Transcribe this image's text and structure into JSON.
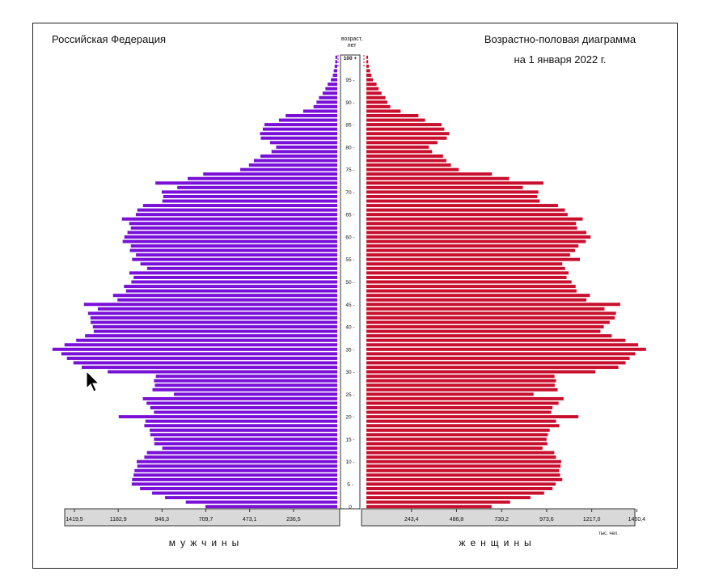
{
  "chart_data": {
    "type": "bar",
    "subtype": "population-pyramid",
    "title_left": "Российская Федерация",
    "title_right": [
      "Возрастно-половая диаграмма",
      "на 1 января 2022 г."
    ],
    "y_axis_label": [
      "возраст,",
      "лет"
    ],
    "y_ticks": [
      "0",
      "5",
      "10",
      "15",
      "20",
      "25",
      "30",
      "35",
      "40",
      "45",
      "50",
      "55",
      "60",
      "65",
      "70",
      "75",
      "80",
      "85",
      "90",
      "95",
      "100 +"
    ],
    "x_tick_labels_male": [
      "1419,5",
      "1182,9",
      "946,3",
      "709,7",
      "473,1",
      "236,5"
    ],
    "x_tick_labels_female": [
      "243,4",
      "486,8",
      "730,2",
      "973,6",
      "1217,0",
      "1460,4"
    ],
    "units": "тыс. чел.",
    "male_label": "мужчины",
    "female_label": "женщины",
    "xlim": [
      0,
      1520
    ],
    "series": [
      {
        "name": "мужчины",
        "color": "#7a10d8",
        "values": [
          712,
          818,
          930,
          1000,
          1065,
          1110,
          1108,
          1100,
          1095,
          1080,
          1083,
          1042,
          1028,
          945,
          988,
          990,
          1010,
          1013,
          1042,
          1036,
          1180,
          990,
          1010,
          1030,
          1050,
          882,
          998,
          985,
          990,
          980,
          1240,
          1380,
          1425,
          1460,
          1490,
          1538,
          1473,
          1410,
          1362,
          1315,
          1320,
          1332,
          1333,
          1346,
          1293,
          1368,
          1187,
          1211,
          1141,
          1152,
          1112,
          1100,
          1123,
          1027,
          1063,
          1108,
          1087,
          1120,
          1115,
          1159,
          1150,
          1133,
          1115,
          1124,
          1163,
          1088,
          1080,
          1049,
          945,
          940,
          948,
          864,
          982,
          808,
          724,
          524,
          477,
          450,
          415,
          355,
          330,
          363,
          413,
          417,
          402,
          393,
          315,
          279,
          184,
          128,
          112,
          99,
          79,
          64,
          52,
          34,
          24,
          19,
          14,
          11,
          10
        ]
      },
      {
        "name": "женщины",
        "color": "#c8102e",
        "values": [
          676,
          776,
          886,
          960,
          1005,
          1022,
          1058,
          1046,
          1041,
          1049,
          1052,
          1024,
          1015,
          951,
          977,
          973,
          980,
          990,
          1042,
          1024,
          1145,
          998,
          1005,
          1038,
          1065,
          903,
          1033,
          1017,
          1024,
          1016,
          1236,
          1361,
          1400,
          1422,
          1452,
          1510,
          1468,
          1399,
          1325,
          1264,
          1282,
          1314,
          1341,
          1348,
          1286,
          1371,
          1188,
          1207,
          1135,
          1130,
          1108,
          1081,
          1092,
          1073,
          1058,
          1153,
          1100,
          1127,
          1145,
          1185,
          1211,
          1188,
          1138,
          1132,
          1168,
          1087,
          1072,
          1035,
          936,
          923,
          929,
          845,
          956,
          771,
          678,
          499,
          457,
          432,
          414,
          355,
          337,
          384,
          434,
          448,
          421,
          406,
          317,
          281,
          185,
          129,
          113,
          103,
          82,
          66,
          55,
          35,
          27,
          20,
          13,
          10,
          9
        ]
      }
    ],
    "grid": false,
    "legend": "none"
  }
}
